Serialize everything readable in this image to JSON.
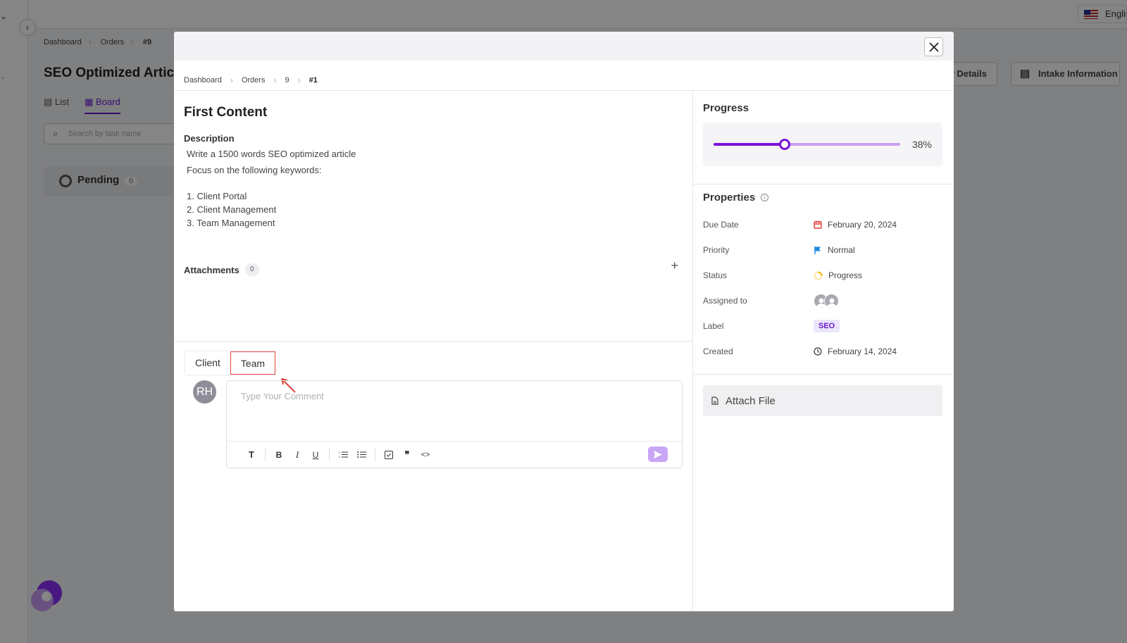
{
  "background": {
    "breadcrumb": [
      "Dashboard",
      "Orders",
      "#9"
    ],
    "page_title": "SEO Optimized Artic",
    "views": [
      "List",
      "Board"
    ],
    "search_placeholder": "Search by task name",
    "column": {
      "label": "Pending",
      "count": "0"
    },
    "order_details_label": "r Details",
    "intake_label": "Intake Information",
    "language": "Englis"
  },
  "modal": {
    "breadcrumb": [
      "Dashboard",
      "Orders",
      "9",
      "#1"
    ],
    "task": {
      "title": "First Content",
      "description_label": "Description",
      "description_lines": [
        "Write a 1500 words SEO optimized article",
        "Focus on the following keywords:"
      ],
      "keywords": [
        "1. Client Portal",
        "2. Client Management",
        "3. Team Management"
      ]
    },
    "attachments": {
      "label": "Attachments",
      "count": "0"
    },
    "comments": {
      "tabs": [
        "Client",
        "Team"
      ],
      "active_tab": "Team",
      "avatar_initials": "RH",
      "placeholder": "Type Your Comment"
    },
    "progress": {
      "title": "Progress",
      "value": 38,
      "label": "38%"
    },
    "properties": {
      "title": "Properties",
      "due_date": {
        "key": "Due Date",
        "value": "February 20, 2024",
        "icon": "calendar-icon",
        "color": "#e53935"
      },
      "priority": {
        "key": "Priority",
        "value": "Normal",
        "icon": "flag-icon",
        "color": "#1e88e5"
      },
      "status": {
        "key": "Status",
        "value": "Progress",
        "icon": "progress-icon",
        "color": "#f5b400"
      },
      "assigned": {
        "key": "Assigned to"
      },
      "label": {
        "key": "Label",
        "value": "SEO"
      },
      "created": {
        "key": "Created",
        "value": "February 14, 2024",
        "icon": "clock-icon"
      }
    },
    "attach_file_label": "Attach File"
  },
  "colors": {
    "accent": "#7a14d6",
    "annotation": "#d9453b"
  }
}
